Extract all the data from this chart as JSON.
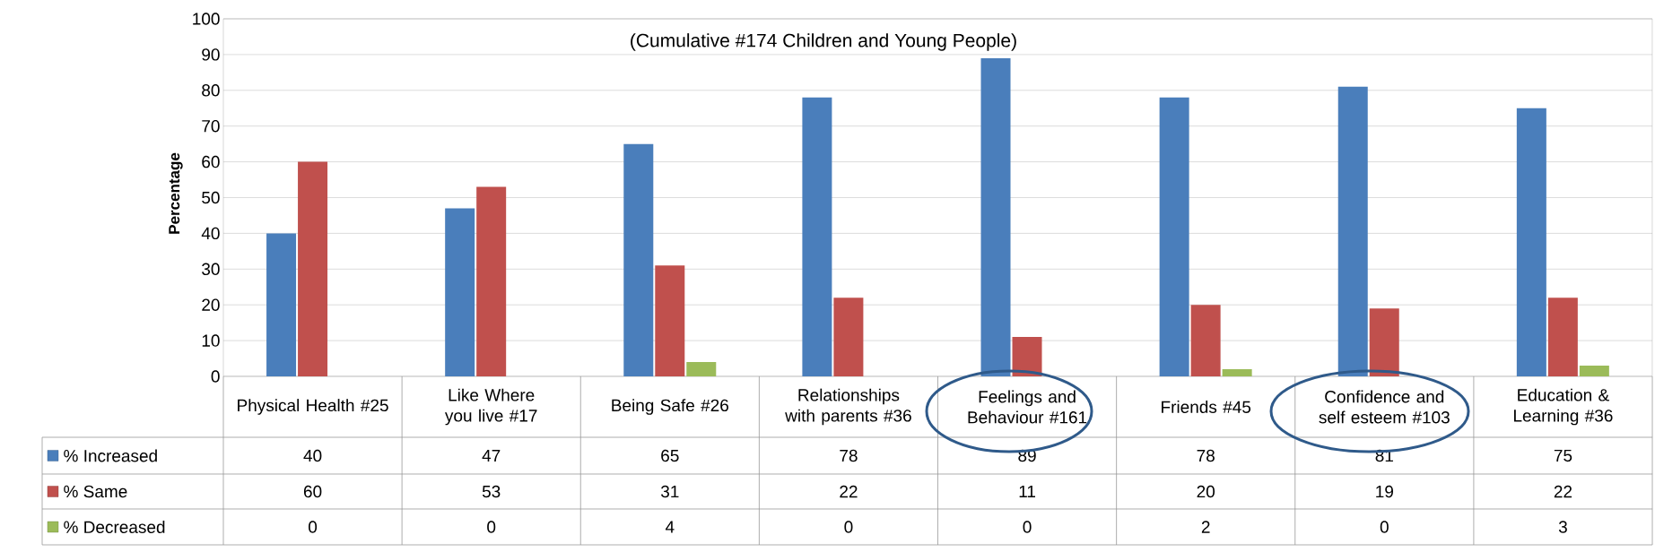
{
  "chart_data": {
    "type": "bar",
    "title": "(Cumulative #174 Children and Young People)",
    "ylabel": "Percentage",
    "categories": [
      "Physical Health #25",
      "Like Where you live #17",
      "Being Safe #26",
      "Relationships with parents #36",
      "Feelings and Behaviour #161",
      "Friends #45",
      "Confidence and self esteem #103",
      "Education & Learning #36"
    ],
    "series": [
      {
        "name": "% Increased",
        "color": "#4a7ebb",
        "values": [
          40,
          47,
          65,
          78,
          89,
          78,
          81,
          75
        ]
      },
      {
        "name": "% Same",
        "color": "#c0504d",
        "values": [
          60,
          53,
          31,
          22,
          11,
          20,
          19,
          22
        ]
      },
      {
        "name": "% Decreased",
        "color": "#9bbb59",
        "values": [
          0,
          0,
          4,
          0,
          0,
          2,
          0,
          3
        ]
      }
    ],
    "ylim": [
      0,
      100
    ],
    "yticks": [
      0,
      10,
      20,
      30,
      40,
      50,
      60,
      70,
      80,
      90,
      100
    ],
    "grid": "y",
    "legend": "bottom left",
    "data_labels": true
  }
}
